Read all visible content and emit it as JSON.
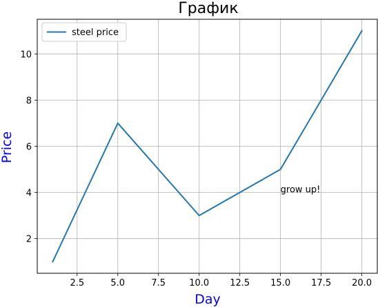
{
  "chart_data": {
    "type": "line",
    "title": "График",
    "xlabel": "Day",
    "ylabel": "Price",
    "xlim": [
      0.05,
      20.95
    ],
    "ylim": [
      0.5,
      11.5
    ],
    "x_ticks": [
      2.5,
      5.0,
      7.5,
      10.0,
      12.5,
      15.0,
      17.5,
      20.0
    ],
    "y_ticks": [
      2,
      4,
      6,
      8,
      10
    ],
    "x_tick_labels": [
      "2.5",
      "5.0",
      "7.5",
      "10.0",
      "12.5",
      "15.0",
      "17.5",
      "20.0"
    ],
    "y_tick_labels": [
      "2",
      "4",
      "6",
      "8",
      "10"
    ],
    "grid": true,
    "legend": "upper-left",
    "series": [
      {
        "name": "steel price",
        "x": [
          1,
          5,
          10,
          15,
          20
        ],
        "y": [
          1,
          7,
          3,
          5,
          11
        ]
      }
    ],
    "annotations": [
      {
        "text": "grow up!",
        "x": 15,
        "y": 4
      }
    ],
    "colors": {
      "line": "#1f77b4",
      "axis_label": "#0000ff",
      "grid": "#b0b0b0"
    }
  }
}
